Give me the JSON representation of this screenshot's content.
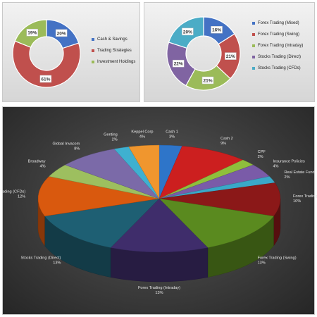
{
  "chart_data": [
    {
      "type": "pie",
      "variant": "doughnut",
      "categories": [
        "Cash & Savings",
        "Trading Strategies",
        "Investment Holdings"
      ],
      "values": [
        20,
        61,
        19
      ],
      "data_labels": [
        "20%",
        "61%",
        "19%"
      ],
      "colors": [
        "#4472c4",
        "#c0504d",
        "#9bbb59"
      ],
      "legend_position": "right"
    },
    {
      "type": "pie",
      "variant": "doughnut",
      "categories": [
        "Forex Trading (Mixed)",
        "Forex Trading (Swing)",
        "Forex Trading (Intraday)",
        "Stocks Trading (Direct)",
        "Stocks Trading (CFDs)"
      ],
      "values": [
        16,
        21,
        21,
        22,
        20
      ],
      "data_labels": [
        "16%",
        "21%",
        "21%",
        "22%",
        "20%"
      ],
      "colors": [
        "#4472c4",
        "#c0504d",
        "#9bbb59",
        "#8064a2",
        "#4bacc6"
      ],
      "legend_position": "right"
    },
    {
      "type": "pie",
      "variant": "3d",
      "categories": [
        "Cash 1",
        "Cash 2",
        "CPF",
        "Insurance Policies",
        "Real Estate Fund",
        "Forex Trading (Mixed)",
        "Forex Trading (Swing)",
        "Forex Trading (Intraday)",
        "Stocks Trading (Direct)",
        "Stocks Trading (CFDs)",
        "Broadway",
        "Global Invacom",
        "Genting",
        "Keppel Corp"
      ],
      "values": [
        3,
        9,
        2,
        4,
        2,
        10,
        13,
        13,
        13,
        12,
        4,
        8,
        2,
        4
      ],
      "data_labels": [
        "3%",
        "9%",
        "2%",
        "4%",
        "2%",
        "10%",
        "13%",
        "13%",
        "13%",
        "12%",
        "4%",
        "8%",
        "2%",
        "4%"
      ],
      "colors": [
        "#2e75c9",
        "#cc1f1f",
        "#8fbf3c",
        "#7a5ba8",
        "#3aa8c8",
        "#8b1818",
        "#5a8a1f",
        "#3f2d6b",
        "#1e5f73",
        "#d9590e",
        "#9dbf5f",
        "#7b6aa8",
        "#3fb0d0",
        "#f0962e"
      ],
      "legend_position": "none"
    }
  ]
}
